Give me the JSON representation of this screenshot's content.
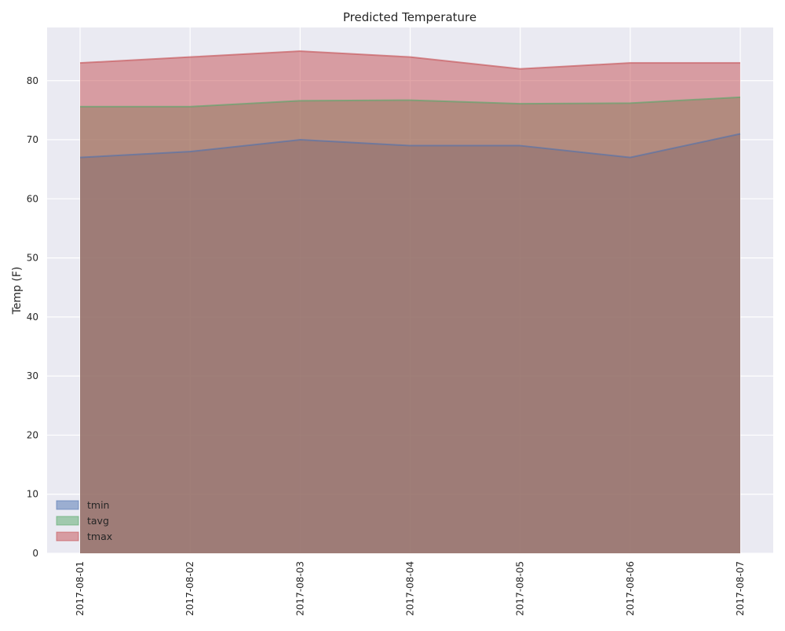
{
  "chart_data": {
    "type": "area",
    "title": "Predicted Temperature",
    "xlabel": "",
    "ylabel": "Temp (F)",
    "categories": [
      "2017-08-01",
      "2017-08-02",
      "2017-08-03",
      "2017-08-04",
      "2017-08-05",
      "2017-08-06",
      "2017-08-07"
    ],
    "series": [
      {
        "name": "tmin",
        "values": [
          67,
          68,
          70,
          69,
          69,
          67,
          71
        ],
        "color": "#4c72b0"
      },
      {
        "name": "tavg",
        "values": [
          75.6,
          75.6,
          76.6,
          76.7,
          76.1,
          76.2,
          77.2
        ],
        "color": "#55a868"
      },
      {
        "name": "tmax",
        "values": [
          83,
          84,
          85,
          84,
          82,
          83,
          83
        ],
        "color": "#c44e52"
      }
    ],
    "ylim": [
      0,
      89
    ],
    "yticks": [
      0,
      10,
      20,
      30,
      40,
      50,
      60,
      70,
      80
    ],
    "stacked": false,
    "grid": true,
    "legend_position": "lower-left",
    "background_color": "#eaeaf2",
    "grid_color": "#ffffff"
  }
}
